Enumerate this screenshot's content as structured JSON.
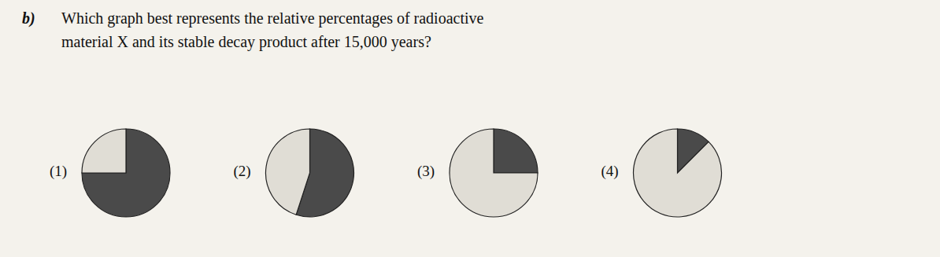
{
  "title": "b)",
  "subtitle": [
    "Which graph best represents the relative percentages of radioactive",
    "material X and its stable decay product after 15,000 years?"
  ],
  "chart_data": [
    {
      "type": "pie",
      "title": "(1)",
      "values": [
        75,
        25
      ],
      "colors": [
        "#4a4a4a",
        "#e0ddd5"
      ]
    },
    {
      "type": "pie",
      "title": "(2)",
      "values": [
        55,
        45
      ],
      "colors": [
        "#4a4a4a",
        "#e0ddd5"
      ]
    },
    {
      "type": "pie",
      "title": "(3)",
      "values": [
        25,
        75
      ],
      "colors": [
        "#4a4a4a",
        "#e0ddd5"
      ]
    },
    {
      "type": "pie",
      "title": "(4)",
      "values": [
        12.5,
        87.5
      ],
      "colors": [
        "#4a4a4a",
        "#e0ddd5"
      ]
    }
  ]
}
